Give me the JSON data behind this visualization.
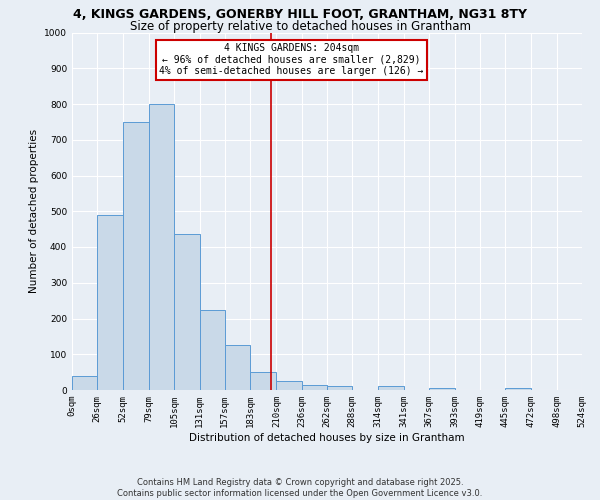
{
  "title": "4, KINGS GARDENS, GONERBY HILL FOOT, GRANTHAM, NG31 8TY",
  "subtitle": "Size of property relative to detached houses in Grantham",
  "xlabel": "Distribution of detached houses by size in Grantham",
  "ylabel": "Number of detached properties",
  "bar_color": "#c9d9e8",
  "bar_edge_color": "#5b9bd5",
  "background_color": "#e8eef5",
  "grid_color": "#ffffff",
  "annotation_box_color": "#cc0000",
  "vline_color": "#cc0000",
  "vline_x": 204,
  "bin_edges": [
    0,
    26,
    52,
    79,
    105,
    131,
    157,
    183,
    210,
    236,
    262,
    288,
    314,
    341,
    367,
    393,
    419,
    445,
    472,
    498,
    524
  ],
  "bin_labels": [
    "0sqm",
    "26sqm",
    "52sqm",
    "79sqm",
    "105sqm",
    "131sqm",
    "157sqm",
    "183sqm",
    "210sqm",
    "236sqm",
    "262sqm",
    "288sqm",
    "314sqm",
    "341sqm",
    "367sqm",
    "393sqm",
    "419sqm",
    "445sqm",
    "472sqm",
    "498sqm",
    "524sqm"
  ],
  "bar_heights": [
    40,
    490,
    750,
    800,
    435,
    225,
    125,
    50,
    25,
    15,
    10,
    0,
    10,
    0,
    5,
    0,
    0,
    5,
    0,
    0
  ],
  "annotation_line1": "4 KINGS GARDENS: 204sqm",
  "annotation_line2": "← 96% of detached houses are smaller (2,829)",
  "annotation_line3": "4% of semi-detached houses are larger (126) →",
  "ylim": [
    0,
    1000
  ],
  "yticks": [
    0,
    100,
    200,
    300,
    400,
    500,
    600,
    700,
    800,
    900,
    1000
  ],
  "footer_line1": "Contains HM Land Registry data © Crown copyright and database right 2025.",
  "footer_line2": "Contains public sector information licensed under the Open Government Licence v3.0.",
  "title_fontsize": 9,
  "subtitle_fontsize": 8.5,
  "annotation_fontsize": 7,
  "axis_label_fontsize": 7.5,
  "tick_fontsize": 6.5,
  "footer_fontsize": 6
}
